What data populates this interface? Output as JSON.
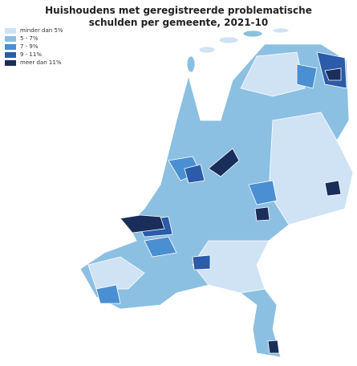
{
  "title": "Huishoudens met geregistreerde problematische schulden per gemeente, 2021-10",
  "legend": {
    "items": [
      {
        "label": "minder dan 5%",
        "color": "#cfe3f4"
      },
      {
        "label": "5 - 7%",
        "color": "#8cc0e2"
      },
      {
        "label": "7 - 9%",
        "color": "#4a8fd2"
      },
      {
        "label": "9 - 11%",
        "color": "#2b5ba9"
      },
      {
        "label": "meer dan 11%",
        "color": "#1a2e5c"
      }
    ]
  }
}
